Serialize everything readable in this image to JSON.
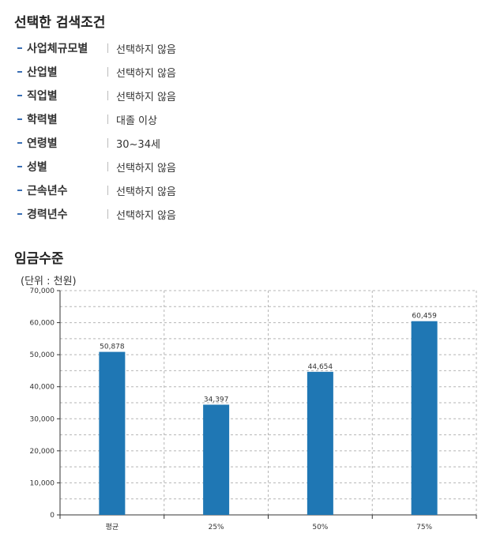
{
  "filters_title": "선택한 검색조건",
  "filters": [
    {
      "label": "사업체규모별",
      "value": "선택하지 않음"
    },
    {
      "label": "산업별",
      "value": "선택하지 않음"
    },
    {
      "label": "직업별",
      "value": "선택하지 않음"
    },
    {
      "label": "학력별",
      "value": "대졸 이상"
    },
    {
      "label": "연령별",
      "value": "30~34세"
    },
    {
      "label": "성별",
      "value": "선택하지 않음"
    },
    {
      "label": "근속년수",
      "value": "선택하지 않음"
    },
    {
      "label": "경력년수",
      "value": "선택하지 않음"
    }
  ],
  "wage_title": "임금수준",
  "unit_label": "(단위 : 천원)",
  "colors": {
    "bar": "#1f77b4",
    "accent": "#3a6fb4"
  },
  "chart_data": {
    "type": "bar",
    "categories": [
      "평균",
      "25%",
      "50%",
      "75%"
    ],
    "values": [
      50878,
      34397,
      44654,
      60459
    ],
    "value_labels": [
      "50,878",
      "34,397",
      "44,654",
      "60,459"
    ],
    "ylim": [
      0,
      70000
    ],
    "yticks": [
      0,
      10000,
      20000,
      30000,
      40000,
      50000,
      60000,
      70000
    ],
    "ytick_labels": [
      "0",
      "10,000",
      "20,000",
      "30,000",
      "40,000",
      "50,000",
      "60,000",
      "70,000"
    ],
    "grid": true,
    "legend": false
  }
}
